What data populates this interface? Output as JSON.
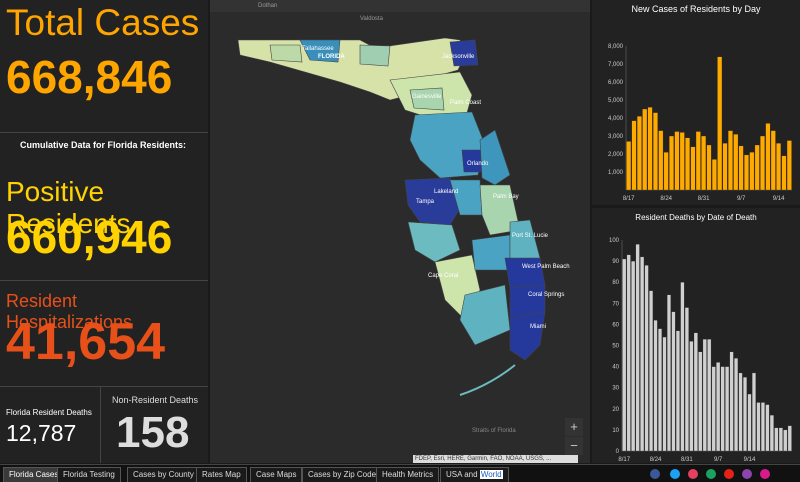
{
  "total": {
    "label": "Total Cases",
    "value": "668,846"
  },
  "cumulative_heading": "Cumulative Data for Florida Residents:",
  "positive": {
    "label": "Positive Residents",
    "value": "660,946"
  },
  "hosp": {
    "label": "Resident Hospitalizations",
    "value": "41,654"
  },
  "deaths": {
    "fl_label": "Florida Resident Deaths",
    "fl_value": "12,787",
    "nonres_label": "Non-Resident Deaths",
    "nonres_value": "158"
  },
  "map": {
    "cities": [
      "Dothan",
      "Valdosta",
      "Tallahassee",
      "FLORIDA",
      "Jacksonville",
      "Gainesville",
      "Palm Coast",
      "Orlando",
      "Lakeland",
      "Tampa",
      "Palm Bay",
      "Port St. Lucie",
      "Cape Coral",
      "West Palm Beach",
      "Coral Springs",
      "Miami",
      "Straits of Florida"
    ],
    "attribution": "FDEP, Esri, HERE, Garmin, FAO, NOAA, USGS, ...",
    "zoom_in": "+",
    "zoom_out": "−"
  },
  "colors": {
    "orange": "#ffa500",
    "yellow": "#ffd200",
    "red": "#e8501a",
    "bar_cases": "#ffaa00",
    "bar_deaths": "#d0d0d0"
  },
  "chart_data": [
    {
      "type": "bar",
      "title": "New Cases of Residents by Day",
      "ylim": [
        0,
        8000
      ],
      "yticks": [
        "1,000",
        "2,000",
        "3,000",
        "4,000",
        "5,000",
        "6,000",
        "7,000",
        "8,000"
      ],
      "xticks": [
        "8/17",
        "8/24",
        "8/31",
        "9/7",
        "9/14"
      ],
      "values": [
        2700,
        3850,
        4100,
        4500,
        4600,
        4300,
        3300,
        2100,
        3000,
        3250,
        3200,
        2900,
        2400,
        3250,
        3000,
        2500,
        1700,
        7400,
        2600,
        3300,
        3100,
        2450,
        1950,
        2100,
        2500,
        3000,
        3700,
        3300,
        2600,
        1900,
        2750
      ]
    },
    {
      "type": "bar",
      "title": "Resident Deaths by Date of Death",
      "ylim": [
        0,
        100
      ],
      "yticks": [
        "0",
        "10",
        "20",
        "30",
        "40",
        "50",
        "60",
        "70",
        "80",
        "90",
        "100"
      ],
      "xticks": [
        "8/17",
        "8/24",
        "8/31",
        "9/7",
        "9/14"
      ],
      "values": [
        91,
        93,
        90,
        98,
        92,
        88,
        76,
        62,
        58,
        54,
        74,
        66,
        57,
        80,
        68,
        52,
        56,
        47,
        53,
        53,
        40,
        42,
        40,
        40,
        47,
        44,
        37,
        35,
        27,
        37,
        23,
        23,
        22,
        17,
        11,
        11,
        10,
        12
      ]
    }
  ],
  "tabs": [
    "Florida Cases",
    "Florida Testing",
    "Cases by County",
    "Rates Map",
    "Case Maps",
    "Cases by Zip Code",
    "Health Metrics",
    "USA and",
    "World"
  ],
  "social": [
    "facebook-icon",
    "twitter-icon",
    "instagram-icon",
    "flickr-icon",
    "youtube-icon",
    "podcast-icon",
    "link-icon"
  ]
}
